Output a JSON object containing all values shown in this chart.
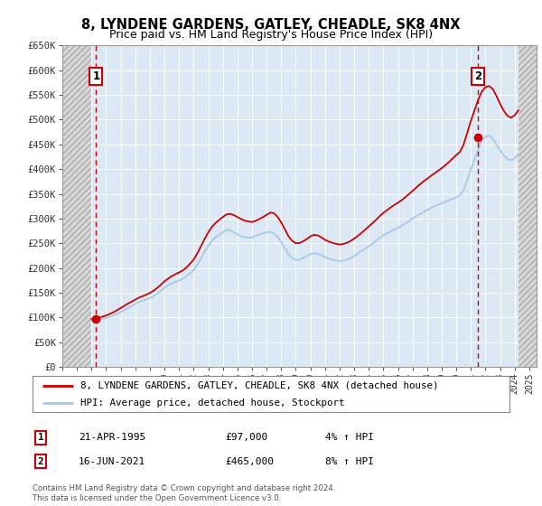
{
  "title": "8, LYNDENE GARDENS, GATLEY, CHEADLE, SK8 4NX",
  "subtitle": "Price paid vs. HM Land Registry's House Price Index (HPI)",
  "title_fontsize": 10.5,
  "subtitle_fontsize": 9,
  "ylim": [
    0,
    650000
  ],
  "yticks": [
    0,
    50000,
    100000,
    150000,
    200000,
    250000,
    300000,
    350000,
    400000,
    450000,
    500000,
    550000,
    600000,
    650000
  ],
  "ytick_labels": [
    "£0",
    "£50K",
    "£100K",
    "£150K",
    "£200K",
    "£250K",
    "£300K",
    "£350K",
    "£400K",
    "£450K",
    "£500K",
    "£550K",
    "£600K",
    "£650K"
  ],
  "xlim_start": 1993.0,
  "xlim_end": 2025.5,
  "hpi_color": "#a8c8e8",
  "price_color": "#cc0000",
  "marker_color": "#cc0000",
  "bg_color": "#dce9f5",
  "grid_color": "#ffffff",
  "sale1_year": 1995.31,
  "sale1_price": 97000,
  "sale1_label": "1",
  "sale2_year": 2021.46,
  "sale2_price": 465000,
  "sale2_label": "2",
  "legend_line1": "8, LYNDENE GARDENS, GATLEY, CHEADLE, SK8 4NX (detached house)",
  "legend_line2": "HPI: Average price, detached house, Stockport",
  "note1_num": "1",
  "note1_date": "21-APR-1995",
  "note1_price": "£97,000",
  "note1_hpi": "4% ↑ HPI",
  "note2_num": "2",
  "note2_date": "16-JUN-2021",
  "note2_price": "£465,000",
  "note2_hpi": "8% ↑ HPI",
  "footer": "Contains HM Land Registry data © Crown copyright and database right 2024.\nThis data is licensed under the Open Government Licence v3.0.",
  "hpi_years": [
    1995.0,
    1995.25,
    1995.5,
    1995.75,
    1996.0,
    1996.25,
    1996.5,
    1996.75,
    1997.0,
    1997.25,
    1997.5,
    1997.75,
    1998.0,
    1998.25,
    1998.5,
    1998.75,
    1999.0,
    1999.25,
    1999.5,
    1999.75,
    2000.0,
    2000.25,
    2000.5,
    2000.75,
    2001.0,
    2001.25,
    2001.5,
    2001.75,
    2002.0,
    2002.25,
    2002.5,
    2002.75,
    2003.0,
    2003.25,
    2003.5,
    2003.75,
    2004.0,
    2004.25,
    2004.5,
    2004.75,
    2005.0,
    2005.25,
    2005.5,
    2005.75,
    2006.0,
    2006.25,
    2006.5,
    2006.75,
    2007.0,
    2007.25,
    2007.5,
    2007.75,
    2008.0,
    2008.25,
    2008.5,
    2008.75,
    2009.0,
    2009.25,
    2009.5,
    2009.75,
    2010.0,
    2010.25,
    2010.5,
    2010.75,
    2011.0,
    2011.25,
    2011.5,
    2011.75,
    2012.0,
    2012.25,
    2012.5,
    2012.75,
    2013.0,
    2013.25,
    2013.5,
    2013.75,
    2014.0,
    2014.25,
    2014.5,
    2014.75,
    2015.0,
    2015.25,
    2015.5,
    2015.75,
    2016.0,
    2016.25,
    2016.5,
    2016.75,
    2017.0,
    2017.25,
    2017.5,
    2017.75,
    2018.0,
    2018.25,
    2018.5,
    2018.75,
    2019.0,
    2019.25,
    2019.5,
    2019.75,
    2020.0,
    2020.25,
    2020.5,
    2020.75,
    2021.0,
    2021.25,
    2021.5,
    2021.75,
    2022.0,
    2022.25,
    2022.5,
    2022.75,
    2023.0,
    2023.25,
    2023.5,
    2023.75,
    2024.0,
    2024.25
  ],
  "hpi_values": [
    93000,
    94000,
    95500,
    97000,
    99000,
    101000,
    104000,
    107000,
    111000,
    115000,
    119000,
    123000,
    127000,
    131000,
    134000,
    136000,
    139000,
    143000,
    148000,
    154000,
    160000,
    165000,
    169000,
    172000,
    175000,
    178000,
    183000,
    189000,
    196000,
    207000,
    220000,
    233000,
    245000,
    255000,
    262000,
    267000,
    272000,
    277000,
    276000,
    272000,
    268000,
    264000,
    262000,
    261000,
    262000,
    265000,
    268000,
    270000,
    272000,
    273000,
    270000,
    263000,
    252000,
    240000,
    228000,
    220000,
    216000,
    217000,
    220000,
    224000,
    228000,
    230000,
    229000,
    226000,
    222000,
    219000,
    217000,
    215000,
    214000,
    215000,
    217000,
    220000,
    224000,
    229000,
    234000,
    239000,
    244000,
    249000,
    255000,
    261000,
    266000,
    270000,
    274000,
    278000,
    281000,
    285000,
    290000,
    295000,
    300000,
    305000,
    309000,
    313000,
    317000,
    321000,
    325000,
    328000,
    331000,
    334000,
    337000,
    340000,
    343000,
    347000,
    358000,
    378000,
    400000,
    420000,
    440000,
    458000,
    465000,
    468000,
    462000,
    450000,
    438000,
    428000,
    420000,
    418000,
    422000,
    430000
  ],
  "price_years": [
    1995.31,
    2021.46
  ],
  "price_values": [
    97000,
    465000
  ],
  "price_line_years": [
    1995.0,
    1995.25,
    1995.5,
    1995.75,
    1996.0,
    1996.25,
    1996.5,
    1996.75,
    1997.0,
    1997.25,
    1997.5,
    1997.75,
    1998.0,
    1998.25,
    1998.5,
    1998.75,
    1999.0,
    1999.25,
    1999.5,
    1999.75,
    2000.0,
    2000.25,
    2000.5,
    2000.75,
    2001.0,
    2001.25,
    2001.5,
    2001.75,
    2002.0,
    2002.25,
    2002.5,
    2002.75,
    2003.0,
    2003.25,
    2003.5,
    2003.75,
    2004.0,
    2004.25,
    2004.5,
    2004.75,
    2005.0,
    2005.25,
    2005.5,
    2005.75,
    2006.0,
    2006.25,
    2006.5,
    2006.75,
    2007.0,
    2007.25,
    2007.5,
    2007.75,
    2008.0,
    2008.25,
    2008.5,
    2008.75,
    2009.0,
    2009.25,
    2009.5,
    2009.75,
    2010.0,
    2010.25,
    2010.5,
    2010.75,
    2011.0,
    2011.25,
    2011.5,
    2011.75,
    2012.0,
    2012.25,
    2012.5,
    2012.75,
    2013.0,
    2013.25,
    2013.5,
    2013.75,
    2014.0,
    2014.25,
    2014.5,
    2014.75,
    2015.0,
    2015.25,
    2015.5,
    2015.75,
    2016.0,
    2016.25,
    2016.5,
    2016.75,
    2017.0,
    2017.25,
    2017.5,
    2017.75,
    2018.0,
    2018.25,
    2018.5,
    2018.75,
    2019.0,
    2019.25,
    2019.5,
    2019.75,
    2020.0,
    2020.25,
    2020.5,
    2020.75,
    2021.0,
    2021.25,
    2021.5,
    2021.75,
    2022.0,
    2022.25,
    2022.5,
    2022.75,
    2023.0,
    2023.25,
    2023.5,
    2023.75,
    2024.0,
    2024.25
  ],
  "price_line_values": [
    97000,
    98000,
    99500,
    101500,
    104000,
    107000,
    110500,
    114500,
    119000,
    123500,
    128000,
    132000,
    136000,
    140000,
    143000,
    146000,
    149500,
    154000,
    159500,
    166000,
    173000,
    178500,
    183500,
    187500,
    191000,
    195000,
    201000,
    208500,
    217000,
    229500,
    244000,
    258500,
    272000,
    283000,
    291000,
    297500,
    303000,
    308500,
    309500,
    307000,
    303000,
    299000,
    296000,
    294000,
    293000,
    295500,
    299000,
    303000,
    307500,
    312000,
    311000,
    303500,
    292000,
    278500,
    264000,
    255000,
    250000,
    250500,
    254000,
    258500,
    264000,
    267000,
    266000,
    262000,
    257000,
    253500,
    251000,
    249000,
    247500,
    248500,
    251000,
    254500,
    259500,
    265000,
    271000,
    277500,
    284000,
    290500,
    297500,
    305000,
    311500,
    317000,
    322500,
    327500,
    332000,
    337000,
    343000,
    349500,
    356000,
    362500,
    369000,
    375000,
    380500,
    386000,
    391500,
    396500,
    402000,
    408000,
    414500,
    421500,
    428500,
    435000,
    449500,
    473500,
    498000,
    519000,
    540500,
    557000,
    566000,
    568000,
    562000,
    548000,
    532000,
    518000,
    508000,
    504000,
    509000,
    519000
  ]
}
